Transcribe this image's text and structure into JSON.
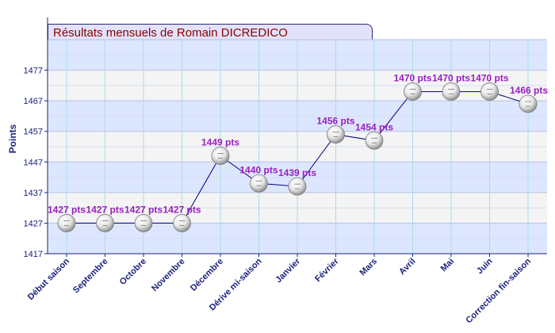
{
  "chart_data": {
    "type": "line",
    "title": "Résultats mensuels de  Romain DICREDICO",
    "ylabel": "Points",
    "xlabel": "",
    "ylim": [
      1417,
      1487
    ],
    "yticks": [
      1417,
      1427,
      1437,
      1447,
      1457,
      1467,
      1477
    ],
    "grid": true,
    "legend": "none",
    "categories": [
      "Début saison",
      "Septembre",
      "Octobre",
      "Novembre",
      "Décembre",
      "Dérive mi-saison",
      "Janvier",
      "Février",
      "Mars",
      "Avril",
      "Mai",
      "Juin",
      "Correction fin-saison"
    ],
    "series": [
      {
        "values": [
          1427,
          1427,
          1427,
          1427,
          1449,
          1440,
          1439,
          1456,
          1454,
          1470,
          1470,
          1470,
          1466
        ],
        "labels": [
          "1427 pts",
          "1427 pts",
          "1427 pts",
          "1427 pts",
          "1449 pts",
          "1440 pts",
          "1439 pts",
          "1456 pts",
          "1454 pts",
          "1470 pts",
          "1470 pts",
          "1470 pts",
          "1466 pts"
        ]
      }
    ],
    "colors": {
      "line": "#000080",
      "label": "#9b1fbf",
      "axis_text": "#1a237e",
      "band_blue": "#dde6ff",
      "band_gray": "#f4f4f4",
      "title": "#8b0000"
    }
  }
}
